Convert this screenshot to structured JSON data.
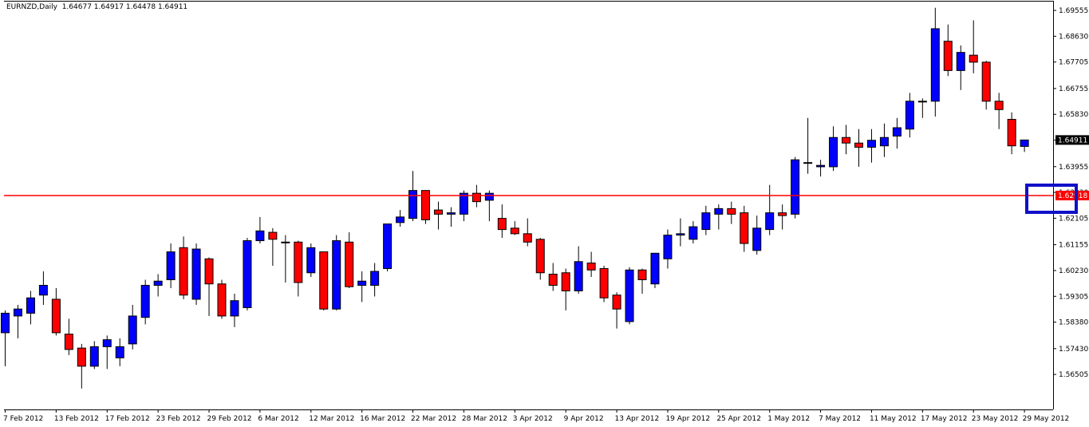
{
  "window": {
    "title": "EURNZD,Daily  1.64677 1.64917 1.64478 1.64911"
  },
  "colors": {
    "bull": "#0000ff",
    "bear": "#ff0000",
    "outline": "#000000",
    "resistance_line": "#ff0000",
    "highlight_box": "#1010c8",
    "price_tag_bg": "#000000",
    "price_tag_fg": "#ffffff",
    "level_tag_bg": "#ff0000"
  },
  "current_price_label": "1.64911",
  "horizontal_line_label": "1.62918",
  "chart_data": {
    "type": "candlestick",
    "symbol": "EURNZD",
    "timeframe": "Daily",
    "ylim": [
      1.5525,
      1.699
    ],
    "grid": false,
    "yticks": [
      "1.69555",
      "1.68630",
      "1.67705",
      "1.66755",
      "1.65830",
      "1.64905",
      "1.63955",
      "1.63030",
      "1.62105",
      "1.61155",
      "1.60230",
      "1.59305",
      "1.58380",
      "1.57430",
      "1.56505"
    ],
    "xtick_labels": [
      {
        "label": "7 Feb 2012",
        "index": 0
      },
      {
        "label": "13 Feb 2012",
        "index": 4
      },
      {
        "label": "17 Feb 2012",
        "index": 8
      },
      {
        "label": "23 Feb 2012",
        "index": 12
      },
      {
        "label": "29 Feb 2012",
        "index": 16
      },
      {
        "label": "6 Mar 2012",
        "index": 20
      },
      {
        "label": "12 Mar 2012",
        "index": 24
      },
      {
        "label": "16 Mar 2012",
        "index": 28
      },
      {
        "label": "22 Mar 2012",
        "index": 32
      },
      {
        "label": "28 Mar 2012",
        "index": 36
      },
      {
        "label": "3 Apr 2012",
        "index": 40
      },
      {
        "label": "9 Apr 2012",
        "index": 44
      },
      {
        "label": "13 Apr 2012",
        "index": 48
      },
      {
        "label": "19 Apr 2012",
        "index": 52
      },
      {
        "label": "25 Apr 2012",
        "index": 56
      },
      {
        "label": "1 May 2012",
        "index": 60
      },
      {
        "label": "7 May 2012",
        "index": 64
      },
      {
        "label": "11 May 2012",
        "index": 68
      },
      {
        "label": "17 May 2012",
        "index": 72
      },
      {
        "label": "23 May 2012",
        "index": 76
      },
      {
        "label": "29 May 2012",
        "index": 80
      }
    ],
    "horizontal_line": 1.62918,
    "candles": [
      {
        "o": 1.58,
        "h": 1.588,
        "l": 1.568,
        "c": 1.587
      },
      {
        "o": 1.586,
        "h": 1.59,
        "l": 1.578,
        "c": 1.5885
      },
      {
        "o": 1.587,
        "h": 1.595,
        "l": 1.583,
        "c": 1.5925
      },
      {
        "o": 1.5935,
        "h": 1.602,
        "l": 1.59,
        "c": 1.597
      },
      {
        "o": 1.592,
        "h": 1.596,
        "l": 1.579,
        "c": 1.58
      },
      {
        "o": 1.5795,
        "h": 1.585,
        "l": 1.572,
        "c": 1.574
      },
      {
        "o": 1.5745,
        "h": 1.576,
        "l": 1.56,
        "c": 1.568
      },
      {
        "o": 1.568,
        "h": 1.577,
        "l": 1.567,
        "c": 1.575
      },
      {
        "o": 1.575,
        "h": 1.579,
        "l": 1.567,
        "c": 1.5775
      },
      {
        "o": 1.571,
        "h": 1.578,
        "l": 1.568,
        "c": 1.575
      },
      {
        "o": 1.576,
        "h": 1.59,
        "l": 1.574,
        "c": 1.586
      },
      {
        "o": 1.5855,
        "h": 1.599,
        "l": 1.583,
        "c": 1.597
      },
      {
        "o": 1.597,
        "h": 1.601,
        "l": 1.593,
        "c": 1.5985
      },
      {
        "o": 1.599,
        "h": 1.612,
        "l": 1.596,
        "c": 1.609
      },
      {
        "o": 1.6105,
        "h": 1.6145,
        "l": 1.592,
        "c": 1.5935
      },
      {
        "o": 1.592,
        "h": 1.612,
        "l": 1.59,
        "c": 1.61
      },
      {
        "o": 1.6065,
        "h": 1.607,
        "l": 1.586,
        "c": 1.5975
      },
      {
        "o": 1.5975,
        "h": 1.599,
        "l": 1.585,
        "c": 1.586
      },
      {
        "o": 1.586,
        "h": 1.594,
        "l": 1.582,
        "c": 1.5915
      },
      {
        "o": 1.589,
        "h": 1.614,
        "l": 1.588,
        "c": 1.613
      },
      {
        "o": 1.613,
        "h": 1.6215,
        "l": 1.612,
        "c": 1.6165
      },
      {
        "o": 1.616,
        "h": 1.6175,
        "l": 1.604,
        "c": 1.6135
      },
      {
        "o": 1.6125,
        "h": 1.615,
        "l": 1.598,
        "c": 1.6125
      },
      {
        "o": 1.6125,
        "h": 1.613,
        "l": 1.593,
        "c": 1.598
      },
      {
        "o": 1.6015,
        "h": 1.612,
        "l": 1.6,
        "c": 1.6105
      },
      {
        "o": 1.609,
        "h": 1.609,
        "l": 1.588,
        "c": 1.5885
      },
      {
        "o": 1.5885,
        "h": 1.615,
        "l": 1.588,
        "c": 1.613
      },
      {
        "o": 1.6125,
        "h": 1.616,
        "l": 1.596,
        "c": 1.5965
      },
      {
        "o": 1.597,
        "h": 1.602,
        "l": 1.591,
        "c": 1.5985
      },
      {
        "o": 1.597,
        "h": 1.605,
        "l": 1.593,
        "c": 1.602
      },
      {
        "o": 1.603,
        "h": 1.619,
        "l": 1.602,
        "c": 1.619
      },
      {
        "o": 1.6195,
        "h": 1.624,
        "l": 1.618,
        "c": 1.6215
      },
      {
        "o": 1.621,
        "h": 1.638,
        "l": 1.62,
        "c": 1.631
      },
      {
        "o": 1.631,
        "h": 1.631,
        "l": 1.619,
        "c": 1.6205
      },
      {
        "o": 1.624,
        "h": 1.627,
        "l": 1.617,
        "c": 1.6225
      },
      {
        "o": 1.6225,
        "h": 1.625,
        "l": 1.618,
        "c": 1.623
      },
      {
        "o": 1.6225,
        "h": 1.631,
        "l": 1.62,
        "c": 1.63
      },
      {
        "o": 1.63,
        "h": 1.633,
        "l": 1.625,
        "c": 1.627
      },
      {
        "o": 1.6275,
        "h": 1.631,
        "l": 1.62,
        "c": 1.63
      },
      {
        "o": 1.621,
        "h": 1.626,
        "l": 1.614,
        "c": 1.617
      },
      {
        "o": 1.6175,
        "h": 1.62,
        "l": 1.615,
        "c": 1.6155
      },
      {
        "o": 1.6155,
        "h": 1.621,
        "l": 1.611,
        "c": 1.6125
      },
      {
        "o": 1.6135,
        "h": 1.614,
        "l": 1.599,
        "c": 1.6015
      },
      {
        "o": 1.601,
        "h": 1.605,
        "l": 1.595,
        "c": 1.597
      },
      {
        "o": 1.6015,
        "h": 1.603,
        "l": 1.588,
        "c": 1.595
      },
      {
        "o": 1.595,
        "h": 1.611,
        "l": 1.594,
        "c": 1.6055
      },
      {
        "o": 1.605,
        "h": 1.609,
        "l": 1.6,
        "c": 1.6025
      },
      {
        "o": 1.603,
        "h": 1.604,
        "l": 1.591,
        "c": 1.5925
      },
      {
        "o": 1.5935,
        "h": 1.5945,
        "l": 1.5815,
        "c": 1.5885
      },
      {
        "o": 1.584,
        "h": 1.6035,
        "l": 1.583,
        "c": 1.6025
      },
      {
        "o": 1.6025,
        "h": 1.603,
        "l": 1.594,
        "c": 1.599
      },
      {
        "o": 1.5975,
        "h": 1.6085,
        "l": 1.596,
        "c": 1.6085
      },
      {
        "o": 1.6065,
        "h": 1.617,
        "l": 1.603,
        "c": 1.615
      },
      {
        "o": 1.615,
        "h": 1.621,
        "l": 1.611,
        "c": 1.6155
      },
      {
        "o": 1.6135,
        "h": 1.62,
        "l": 1.612,
        "c": 1.618
      },
      {
        "o": 1.617,
        "h": 1.6255,
        "l": 1.615,
        "c": 1.623
      },
      {
        "o": 1.6225,
        "h": 1.626,
        "l": 1.617,
        "c": 1.6245
      },
      {
        "o": 1.6245,
        "h": 1.627,
        "l": 1.619,
        "c": 1.6225
      },
      {
        "o": 1.623,
        "h": 1.6255,
        "l": 1.609,
        "c": 1.612
      },
      {
        "o": 1.6095,
        "h": 1.622,
        "l": 1.608,
        "c": 1.6175
      },
      {
        "o": 1.617,
        "h": 1.633,
        "l": 1.615,
        "c": 1.623
      },
      {
        "o": 1.623,
        "h": 1.626,
        "l": 1.617,
        "c": 1.622
      },
      {
        "o": 1.6225,
        "h": 1.643,
        "l": 1.621,
        "c": 1.642
      },
      {
        "o": 1.641,
        "h": 1.657,
        "l": 1.637,
        "c": 1.641
      },
      {
        "o": 1.6395,
        "h": 1.642,
        "l": 1.636,
        "c": 1.64
      },
      {
        "o": 1.6395,
        "h": 1.654,
        "l": 1.638,
        "c": 1.65
      },
      {
        "o": 1.65,
        "h": 1.6545,
        "l": 1.644,
        "c": 1.648
      },
      {
        "o": 1.648,
        "h": 1.653,
        "l": 1.6395,
        "c": 1.6465
      },
      {
        "o": 1.6465,
        "h": 1.653,
        "l": 1.641,
        "c": 1.649
      },
      {
        "o": 1.647,
        "h": 1.655,
        "l": 1.643,
        "c": 1.65
      },
      {
        "o": 1.6505,
        "h": 1.657,
        "l": 1.646,
        "c": 1.6535
      },
      {
        "o": 1.653,
        "h": 1.666,
        "l": 1.65,
        "c": 1.663
      },
      {
        "o": 1.663,
        "h": 1.664,
        "l": 1.657,
        "c": 1.663
      },
      {
        "o": 1.663,
        "h": 1.6965,
        "l": 1.6575,
        "c": 1.689
      },
      {
        "o": 1.6845,
        "h": 1.6905,
        "l": 1.672,
        "c": 1.674
      },
      {
        "o": 1.674,
        "h": 1.683,
        "l": 1.667,
        "c": 1.6805
      },
      {
        "o": 1.6795,
        "h": 1.692,
        "l": 1.673,
        "c": 1.677
      },
      {
        "o": 1.677,
        "h": 1.6775,
        "l": 1.66,
        "c": 1.663
      },
      {
        "o": 1.663,
        "h": 1.666,
        "l": 1.653,
        "c": 1.66
      },
      {
        "o": 1.6565,
        "h": 1.659,
        "l": 1.644,
        "c": 1.647
      },
      {
        "o": 1.6468,
        "h": 1.6492,
        "l": 1.6448,
        "c": 1.6491
      }
    ]
  }
}
